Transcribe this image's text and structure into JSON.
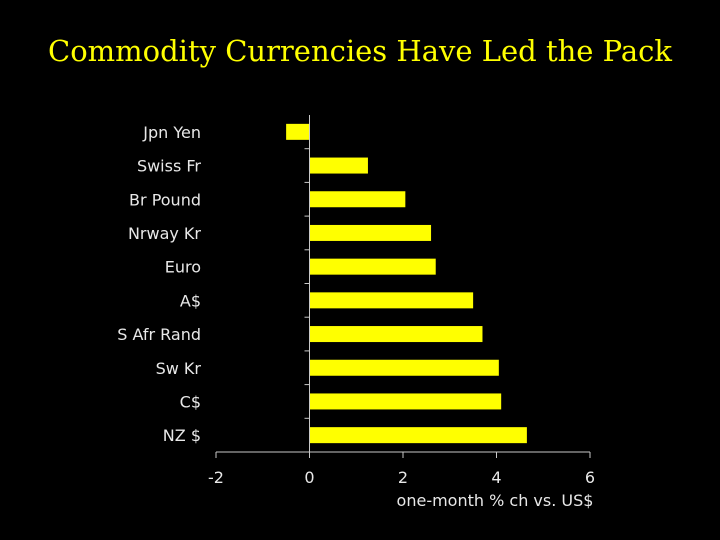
{
  "slide": {
    "title": "Commodity Currencies Have Led the Pack"
  },
  "chart_data": {
    "type": "bar",
    "orientation": "horizontal",
    "title": "",
    "xlabel": "one-month % ch vs. US$",
    "ylabel": "",
    "categories": [
      "Jpn Yen",
      "Swiss Fr",
      "Br Pound",
      "Nrway Kr",
      "Euro",
      "A$",
      "S Afr Rand",
      "Sw Kr",
      "C$",
      "NZ $"
    ],
    "values": [
      -0.5,
      1.25,
      2.05,
      2.6,
      2.7,
      3.5,
      3.7,
      4.05,
      4.1,
      4.65
    ],
    "xlim": [
      -2,
      6
    ],
    "xticks": [
      -2,
      0,
      2,
      4,
      6
    ],
    "grid": false,
    "legend": "none",
    "colors": {
      "bar": "#FFFF00",
      "axis": "#C8C8C8",
      "text": "#E8E8E8",
      "background": "#000000"
    }
  }
}
